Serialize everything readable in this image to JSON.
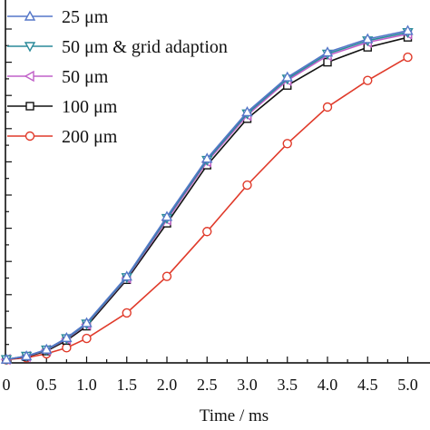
{
  "chart_data": {
    "type": "line",
    "title": "",
    "xlabel": "Time / ms",
    "ylabel": "",
    "xlim": [
      0,
      5.3
    ],
    "ylim": [
      0,
      1.0
    ],
    "x_ticks": [
      "0",
      "0.5",
      "1.0",
      "1.5",
      "2.0",
      "2.5",
      "3.0",
      "3.5",
      "4.0",
      "4.5",
      "5.0"
    ],
    "grid": false,
    "legend_position": "top-left",
    "series": [
      {
        "name": "25 μm",
        "color": "#5577c8",
        "marker": "triangle-up",
        "x": [
          0,
          0.25,
          0.5,
          0.75,
          1.0,
          1.5,
          2.0,
          2.5,
          3.0,
          3.5,
          4.0,
          4.5,
          5.0
        ],
        "y": [
          0.005,
          0.015,
          0.035,
          0.07,
          0.115,
          0.255,
          0.435,
          0.61,
          0.75,
          0.855,
          0.93,
          0.97,
          0.995
        ]
      },
      {
        "name": "50 μm & grid adaption",
        "color": "#2a8a9a",
        "marker": "triangle-down",
        "x": [
          0,
          0.25,
          0.5,
          0.75,
          1.0,
          1.5,
          2.0,
          2.5,
          3.0,
          3.5,
          4.0,
          4.5,
          5.0
        ],
        "y": [
          0.005,
          0.015,
          0.034,
          0.068,
          0.112,
          0.252,
          0.43,
          0.605,
          0.745,
          0.85,
          0.925,
          0.965,
          0.99
        ]
      },
      {
        "name": "50 μm",
        "color": "#c060c8",
        "marker": "triangle-left",
        "x": [
          0,
          0.25,
          0.5,
          0.75,
          1.0,
          1.5,
          2.0,
          2.5,
          3.0,
          3.5,
          4.0,
          4.5,
          5.0
        ],
        "y": [
          0.005,
          0.014,
          0.033,
          0.066,
          0.11,
          0.25,
          0.425,
          0.6,
          0.74,
          0.845,
          0.92,
          0.96,
          0.985
        ]
      },
      {
        "name": "100 μm",
        "color": "#111111",
        "marker": "square",
        "x": [
          0,
          0.25,
          0.5,
          0.75,
          1.0,
          1.5,
          2.0,
          2.5,
          3.0,
          3.5,
          4.0,
          4.5,
          5.0
        ],
        "y": [
          0.005,
          0.013,
          0.03,
          0.062,
          0.105,
          0.245,
          0.415,
          0.59,
          0.73,
          0.83,
          0.9,
          0.945,
          0.975
        ]
      },
      {
        "name": "200 μm",
        "color": "#e03a2a",
        "marker": "circle",
        "x": [
          0,
          0.25,
          0.5,
          0.75,
          1.0,
          1.5,
          2.0,
          2.5,
          3.0,
          3.5,
          4.0,
          4.5,
          5.0
        ],
        "y": [
          0.004,
          0.01,
          0.022,
          0.04,
          0.068,
          0.145,
          0.255,
          0.39,
          0.53,
          0.655,
          0.765,
          0.845,
          0.915
        ]
      }
    ]
  }
}
